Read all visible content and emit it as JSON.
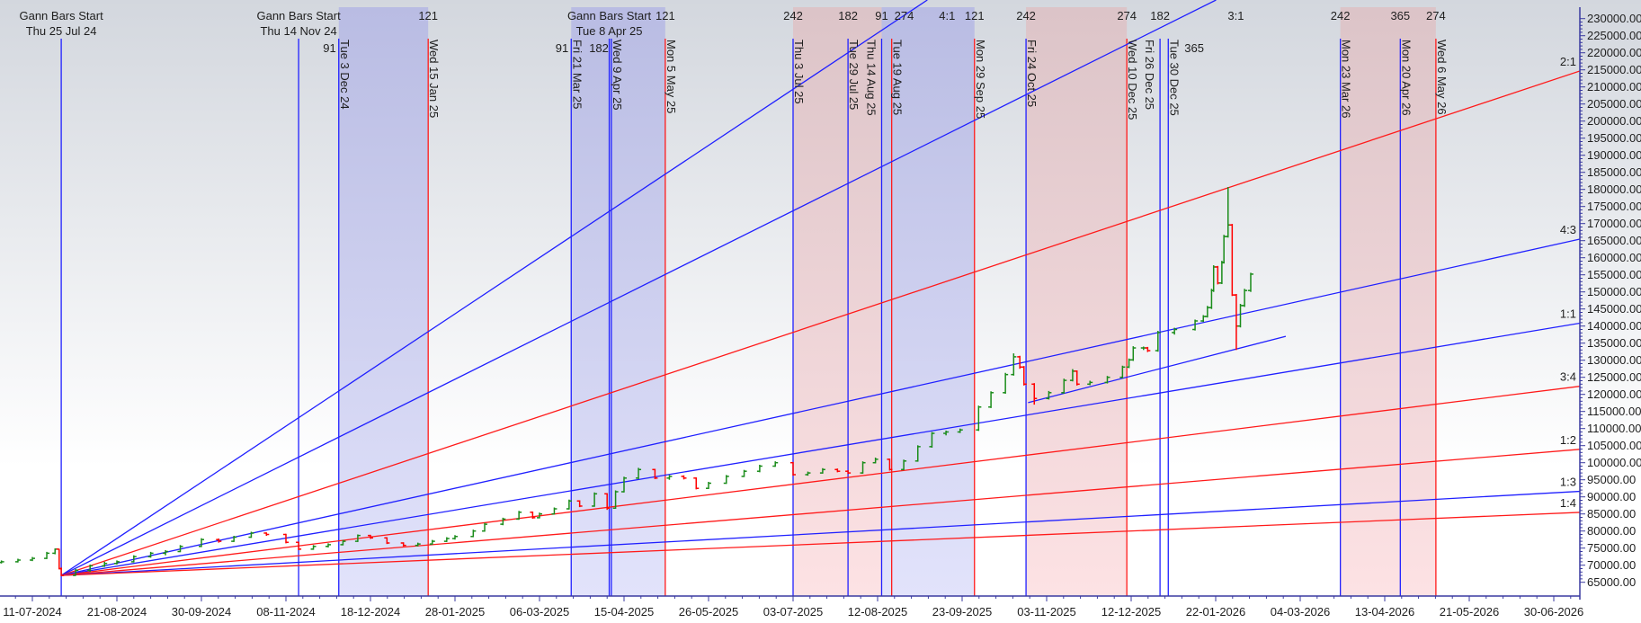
{
  "chart_data": {
    "type": "ohlc",
    "title": "",
    "xlabel": "",
    "ylabel": "",
    "ylim": [
      65000,
      230000
    ],
    "y_ticks": [
      230000,
      225000,
      220000,
      215000,
      210000,
      205000,
      200000,
      195000,
      190000,
      185000,
      180000,
      175000,
      170000,
      165000,
      160000,
      155000,
      150000,
      145000,
      140000,
      135000,
      130000,
      125000,
      120000,
      115000,
      110000,
      105000,
      100000,
      95000,
      90000,
      85000,
      80000,
      75000,
      70000,
      65000
    ],
    "y_tick_format_decimals": 2,
    "x_ticks": [
      {
        "date": "2024-07-11",
        "label": "11-07-2024"
      },
      {
        "date": "2024-08-21",
        "label": "21-08-2024"
      },
      {
        "date": "2024-09-30",
        "label": "30-09-2024"
      },
      {
        "date": "2024-11-08",
        "label": "08-11-2024"
      },
      {
        "date": "2024-12-18",
        "label": "18-12-2024"
      },
      {
        "date": "2025-01-28",
        "label": "28-01-2025"
      },
      {
        "date": "2025-03-06",
        "label": "06-03-2025"
      },
      {
        "date": "2025-04-15",
        "label": "15-04-2025"
      },
      {
        "date": "2025-05-26",
        "label": "26-05-2025"
      },
      {
        "date": "2025-07-03",
        "label": "03-07-2025"
      },
      {
        "date": "2025-08-12",
        "label": "12-08-2025"
      },
      {
        "date": "2025-09-23",
        "label": "23-09-2025"
      },
      {
        "date": "2025-11-03",
        "label": "03-11-2025"
      },
      {
        "date": "2025-12-12",
        "label": "12-12-2025"
      },
      {
        "date": "2026-01-22",
        "label": "22-01-2026"
      },
      {
        "date": "2026-03-04",
        "label": "04-03-2026"
      },
      {
        "date": "2026-04-13",
        "label": "13-04-2026"
      },
      {
        "date": "2026-05-21",
        "label": "21-05-2026"
      },
      {
        "date": "2026-06-30",
        "label": "30-06-2026"
      }
    ],
    "colors": {
      "up": "#1a8c1a",
      "down": "#ff0000",
      "blue_line": "#2020ff",
      "red_line": "#ff1a1a",
      "blue_zone": "#aeb2ea",
      "pink_zone": "#eab4b9",
      "axis": "#3a3aa0"
    },
    "bars_columns": [
      "date",
      "open",
      "high",
      "low",
      "close"
    ],
    "bars": [
      [
        "2024-06-26",
        70800,
        71400,
        70500,
        71000
      ],
      [
        "2024-07-04",
        71000,
        71900,
        70800,
        71500
      ],
      [
        "2024-07-11",
        71500,
        72400,
        71200,
        72000
      ],
      [
        "2024-07-18",
        72000,
        73900,
        71800,
        73500
      ],
      [
        "2024-07-22",
        73500,
        74900,
        73200,
        74700
      ],
      [
        "2024-07-24",
        74700,
        74800,
        68800,
        69000
      ],
      [
        "2024-07-25",
        69000,
        69300,
        66800,
        67000
      ],
      [
        "2024-08-01",
        67000,
        68900,
        66900,
        68500
      ],
      [
        "2024-08-08",
        68500,
        70200,
        68000,
        69800
      ],
      [
        "2024-08-15",
        69800,
        71000,
        69500,
        70500
      ],
      [
        "2024-08-21",
        70500,
        71400,
        70200,
        71000
      ],
      [
        "2024-08-29",
        71000,
        72900,
        70800,
        72500
      ],
      [
        "2024-09-06",
        72500,
        73900,
        72200,
        73500
      ],
      [
        "2024-09-13",
        73500,
        74400,
        72900,
        74000
      ],
      [
        "2024-09-20",
        74000,
        75900,
        73800,
        75500
      ],
      [
        "2024-09-30",
        75500,
        77900,
        75300,
        77500
      ],
      [
        "2024-10-08",
        77500,
        77800,
        76600,
        77000
      ],
      [
        "2024-10-15",
        77000,
        78600,
        76800,
        78200
      ],
      [
        "2024-10-23",
        78200,
        79800,
        78000,
        79400
      ],
      [
        "2024-10-30",
        79400,
        79600,
        78600,
        79000
      ],
      [
        "2024-11-08",
        79000,
        79200,
        76400,
        76700
      ],
      [
        "2024-11-14",
        76700,
        76900,
        74400,
        74700
      ],
      [
        "2024-11-21",
        74700,
        75900,
        74500,
        75500
      ],
      [
        "2024-11-28",
        75500,
        76400,
        75200,
        76000
      ],
      [
        "2024-12-05",
        76000,
        77400,
        75800,
        77000
      ],
      [
        "2024-12-12",
        77000,
        79000,
        76800,
        78700
      ],
      [
        "2024-12-18",
        78700,
        78900,
        77700,
        78000
      ],
      [
        "2024-12-26",
        78000,
        78200,
        76200,
        76500
      ],
      [
        "2025-01-03",
        76500,
        76700,
        75500,
        75800
      ],
      [
        "2025-01-10",
        75800,
        76600,
        75500,
        76200
      ],
      [
        "2025-01-17",
        76200,
        77400,
        76000,
        77000
      ],
      [
        "2025-01-24",
        77000,
        78200,
        76800,
        77800
      ],
      [
        "2025-01-28",
        77800,
        78800,
        77500,
        78400
      ],
      [
        "2025-02-05",
        78400,
        80400,
        78200,
        80000
      ],
      [
        "2025-02-10",
        80000,
        82400,
        79800,
        82000
      ],
      [
        "2025-02-18",
        82000,
        83900,
        81700,
        83500
      ],
      [
        "2025-02-25",
        83500,
        85900,
        83300,
        85500
      ],
      [
        "2025-03-03",
        85500,
        85700,
        83600,
        83900
      ],
      [
        "2025-03-06",
        83900,
        85400,
        83700,
        85000
      ],
      [
        "2025-03-13",
        85000,
        86900,
        84800,
        86500
      ],
      [
        "2025-03-20",
        86500,
        89200,
        86300,
        88800
      ],
      [
        "2025-03-25",
        88800,
        89000,
        87000,
        87300
      ],
      [
        "2025-04-01",
        87300,
        91300,
        87100,
        90900
      ],
      [
        "2025-04-07",
        90900,
        91100,
        86200,
        86700
      ],
      [
        "2025-04-11",
        86700,
        91900,
        86500,
        91500
      ],
      [
        "2025-04-15",
        91500,
        95900,
        91300,
        95500
      ],
      [
        "2025-04-22",
        95500,
        98500,
        95200,
        98000
      ],
      [
        "2025-04-30",
        98000,
        98200,
        95200,
        95500
      ],
      [
        "2025-05-07",
        95500,
        96400,
        95000,
        96000
      ],
      [
        "2025-05-14",
        96000,
        96300,
        95100,
        95500
      ],
      [
        "2025-05-20",
        95500,
        95700,
        92200,
        92500
      ],
      [
        "2025-05-26",
        92500,
        94400,
        92300,
        94000
      ],
      [
        "2025-06-03",
        94000,
        96400,
        93800,
        96000
      ],
      [
        "2025-06-11",
        96000,
        97900,
        95800,
        97500
      ],
      [
        "2025-06-18",
        97500,
        99400,
        97200,
        99000
      ],
      [
        "2025-06-25",
        99000,
        100400,
        98800,
        100000
      ],
      [
        "2025-07-03",
        100000,
        100200,
        96200,
        96500
      ],
      [
        "2025-07-10",
        96500,
        97400,
        96200,
        97000
      ],
      [
        "2025-07-17",
        97000,
        98400,
        96800,
        98000
      ],
      [
        "2025-07-24",
        98000,
        98300,
        97200,
        97500
      ],
      [
        "2025-07-29",
        97500,
        97800,
        96700,
        97000
      ],
      [
        "2025-08-05",
        97000,
        100400,
        96800,
        100000
      ],
      [
        "2025-08-11",
        100000,
        101500,
        99800,
        101000
      ],
      [
        "2025-08-18",
        101000,
        101200,
        97700,
        98000
      ],
      [
        "2025-08-25",
        98000,
        100900,
        97800,
        100500
      ],
      [
        "2025-09-01",
        100500,
        105100,
        100300,
        104700
      ],
      [
        "2025-09-08",
        104700,
        109000,
        104400,
        108600
      ],
      [
        "2025-09-15",
        108600,
        109400,
        108000,
        109000
      ],
      [
        "2025-09-22",
        109000,
        110000,
        108700,
        109600
      ],
      [
        "2025-10-01",
        109600,
        116700,
        109300,
        116300
      ],
      [
        "2025-10-07",
        116300,
        120900,
        116000,
        120500
      ],
      [
        "2025-10-14",
        120500,
        126300,
        120200,
        125800
      ],
      [
        "2025-10-18",
        125800,
        132000,
        125500,
        131000
      ],
      [
        "2025-10-21",
        131000,
        131300,
        127500,
        128000
      ],
      [
        "2025-10-23",
        128000,
        128300,
        122600,
        123000
      ],
      [
        "2025-10-28",
        123000,
        123300,
        117000,
        118800
      ],
      [
        "2025-11-04",
        118800,
        121000,
        118500,
        120500
      ],
      [
        "2025-11-11",
        120500,
        124600,
        120200,
        124100
      ],
      [
        "2025-11-15",
        124100,
        127400,
        123800,
        126800
      ],
      [
        "2025-11-17",
        126800,
        127000,
        122600,
        123000
      ],
      [
        "2025-11-23",
        123000,
        124000,
        122700,
        123500
      ],
      [
        "2025-12-01",
        123500,
        125400,
        123200,
        125000
      ],
      [
        "2025-12-08",
        125000,
        128400,
        124700,
        128000
      ],
      [
        "2025-12-11",
        128000,
        130500,
        127700,
        130100
      ],
      [
        "2025-12-13",
        130100,
        134100,
        129800,
        133600
      ],
      [
        "2025-12-18",
        133600,
        134000,
        133000,
        133600
      ],
      [
        "2025-12-20",
        133600,
        133900,
        132400,
        132800
      ],
      [
        "2025-12-25",
        132800,
        138600,
        132500,
        138100
      ],
      [
        "2026-01-02",
        138100,
        139500,
        137500,
        139000
      ],
      [
        "2026-01-12",
        139000,
        141900,
        138700,
        141500
      ],
      [
        "2026-01-16",
        141500,
        143200,
        141200,
        142800
      ],
      [
        "2026-01-18",
        142800,
        145900,
        142500,
        145400
      ],
      [
        "2026-01-20",
        145400,
        150900,
        145000,
        150400
      ],
      [
        "2026-01-21",
        150400,
        157800,
        150000,
        157300
      ],
      [
        "2026-01-23",
        157300,
        157600,
        152200,
        152600
      ],
      [
        "2026-01-25",
        152600,
        159100,
        152300,
        158600
      ],
      [
        "2026-01-26",
        158600,
        166700,
        158300,
        166200
      ],
      [
        "2026-01-28",
        166200,
        180700,
        165900,
        169600
      ],
      [
        "2026-01-30",
        169600,
        169900,
        148800,
        149100
      ],
      [
        "2026-02-01",
        149100,
        149400,
        133000,
        140000
      ],
      [
        "2026-02-03",
        140000,
        146500,
        139600,
        146000
      ],
      [
        "2026-02-05",
        146000,
        150900,
        145600,
        150400
      ],
      [
        "2026-02-08",
        150400,
        155600,
        150000,
        155200
      ]
    ],
    "gann_fan": {
      "origin": {
        "date": "2024-07-25",
        "price": 67000
      },
      "one_to_one_through": {
        "date": "2026-07-11",
        "price": 140700
      },
      "lines": [
        {
          "ratio": 4,
          "label": "4:1",
          "color": "blue"
        },
        {
          "ratio": 3,
          "label": "3:1",
          "color": "blue"
        },
        {
          "ratio": 2,
          "label": "2:1",
          "color": "red"
        },
        {
          "ratio": 1.3333,
          "label": "4:3",
          "color": "blue"
        },
        {
          "ratio": 1,
          "label": "1:1",
          "color": "blue"
        },
        {
          "ratio": 0.75,
          "label": "3:4",
          "color": "red"
        },
        {
          "ratio": 0.5,
          "label": "1:2",
          "color": "red"
        },
        {
          "ratio": 0.3333,
          "label": "1:3",
          "color": "blue"
        },
        {
          "ratio": 0.25,
          "label": "1:4",
          "color": "red"
        }
      ]
    },
    "trend_lines": [
      {
        "from": {
          "date": "2025-10-25",
          "price": 117600
        },
        "to": {
          "date": "2026-02-25",
          "price": 137000
        },
        "color": "blue"
      }
    ],
    "gann_starts": [
      {
        "date": "2024-07-25",
        "title": "Gann Bars Start",
        "label": "Thu 25 Jul 24"
      },
      {
        "date": "2024-11-14",
        "title": "Gann Bars Start",
        "label": "Thu 14 Nov 24"
      },
      {
        "date": "2025-04-08",
        "title": "Gann Bars Start",
        "label": "Tue 8 Apr 25"
      }
    ],
    "time_lines": [
      {
        "date": "2024-12-03",
        "label": "Tue 3 Dec 24",
        "count": "91",
        "color": "blue"
      },
      {
        "date": "2025-01-15",
        "label": "Wed 15 Jan 25",
        "count": "121",
        "color": "red"
      },
      {
        "date": "2025-03-21",
        "label": "Fri 21 Mar 25",
        "count": "91",
        "color": "blue"
      },
      {
        "date": "2025-04-09",
        "label": "Wed 9 Apr 25",
        "count": "182",
        "color": "blue"
      },
      {
        "date": "2025-05-05",
        "label": "Mon 5 May 25",
        "count": "121",
        "color": "red"
      },
      {
        "date": "2025-07-03",
        "label": "Thu 3 Jul 25",
        "count": "242",
        "color": "blue"
      },
      {
        "date": "2025-07-29",
        "label": "Tue 29 Jul 25",
        "count": "182",
        "color": "blue"
      },
      {
        "date": "2025-08-14",
        "label": "Thu 14 Aug 25",
        "count": "91",
        "color": "blue"
      },
      {
        "date": "2025-08-19",
        "label": "Tue 19 Aug 25",
        "count": "274",
        "color": "red"
      },
      {
        "date": "2025-09-29",
        "label": "Mon 29 Sep 25",
        "count": "121",
        "color": "red"
      },
      {
        "date": "2025-10-24",
        "label": "Fri 24 Oct 25",
        "count": "242",
        "color": "blue"
      },
      {
        "date": "2025-12-10",
        "label": "Wed 10 Dec 25",
        "count": "274",
        "color": "red"
      },
      {
        "date": "2025-12-26",
        "label": "Fri 26 Dec 25",
        "count": "182",
        "color": "blue"
      },
      {
        "date": "2025-12-30",
        "label": "Tue 30 Dec 25",
        "count": "365",
        "color": "blue"
      },
      {
        "date": "2026-03-23",
        "label": "Mon 23 Mar 26",
        "count": "242",
        "color": "blue"
      },
      {
        "date": "2026-04-20",
        "label": "Mon 20 Apr 26",
        "count": "365",
        "color": "blue"
      },
      {
        "date": "2026-05-06",
        "label": "Wed 6 May 26",
        "count": "274",
        "color": "red"
      }
    ],
    "zones": [
      {
        "from": "2024-12-03",
        "to": "2025-01-15",
        "color": "blue"
      },
      {
        "from": "2025-03-21",
        "to": "2025-05-05",
        "color": "blue"
      },
      {
        "from": "2025-07-03",
        "to": "2025-08-14",
        "color": "pink"
      },
      {
        "from": "2025-08-14",
        "to": "2025-09-29",
        "color": "blue"
      },
      {
        "from": "2025-10-24",
        "to": "2025-12-10",
        "color": "pink"
      },
      {
        "from": "2026-03-23",
        "to": "2026-05-06",
        "color": "pink"
      }
    ]
  }
}
